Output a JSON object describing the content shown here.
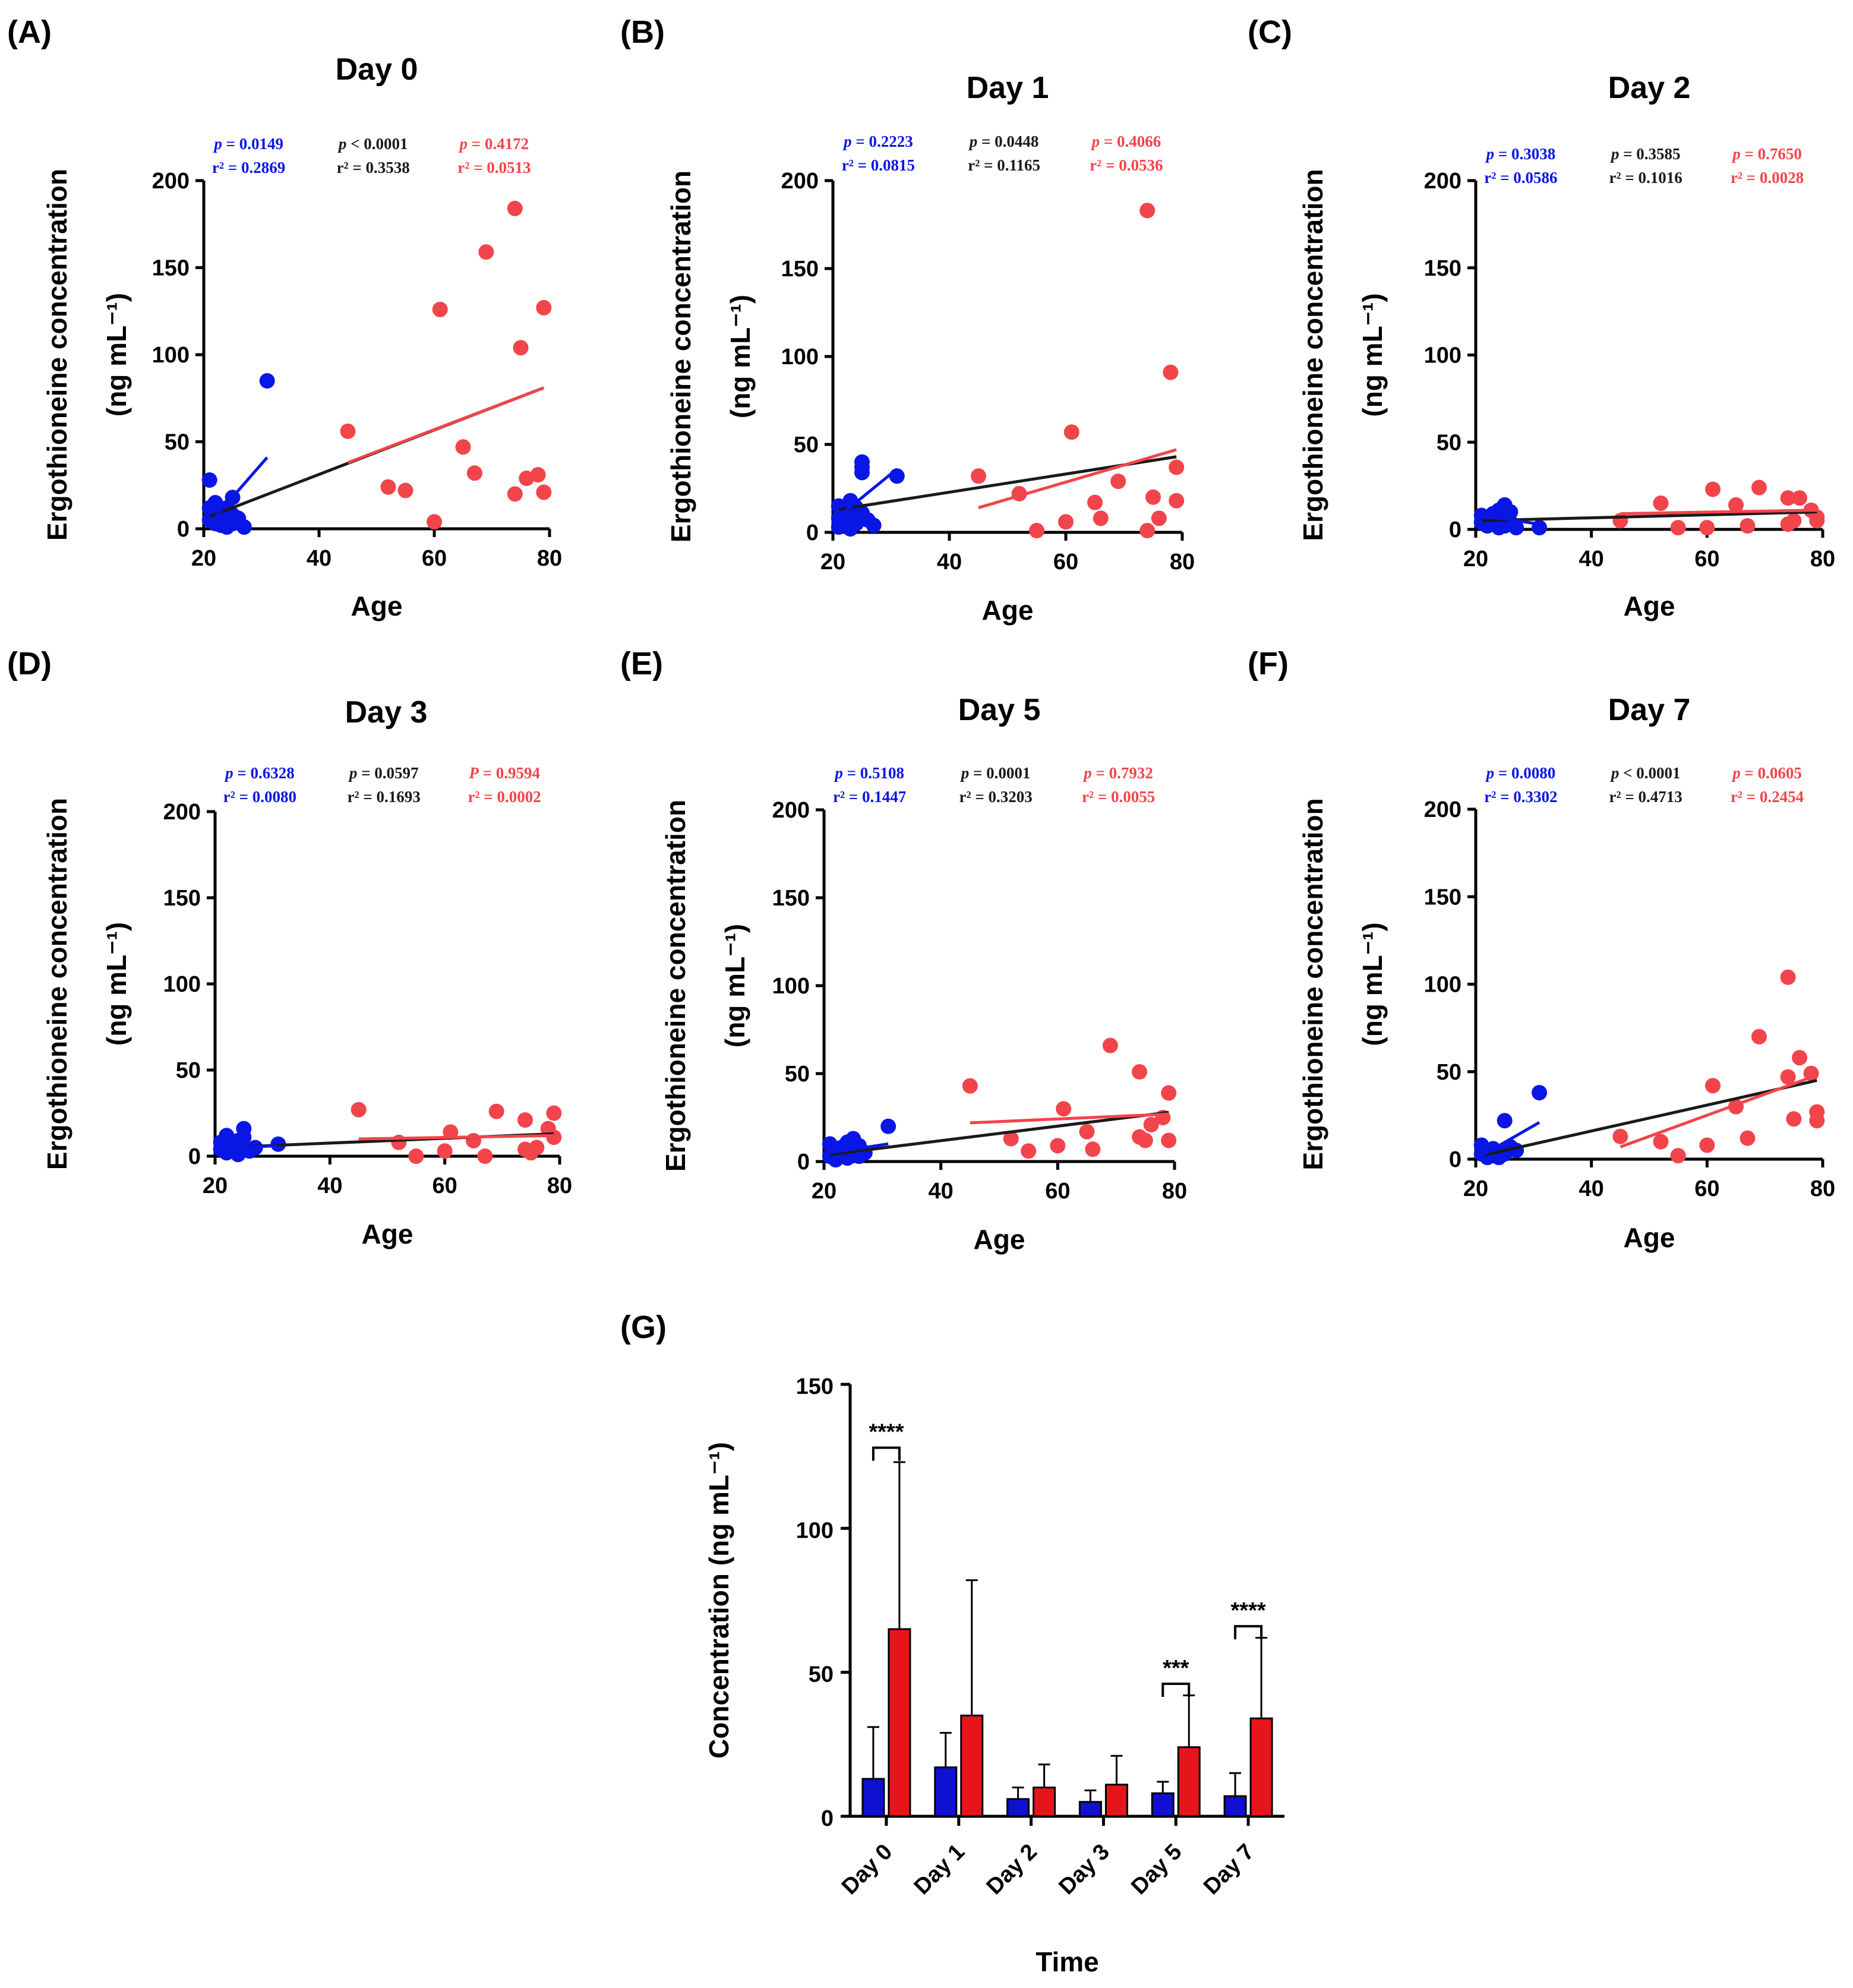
{
  "colors": {
    "young": "#0a16e6",
    "overall": "#1a1a1a",
    "old": "#f2444b",
    "bar_young": "#1010d0",
    "bar_old": "#e8141c"
  },
  "chart_data": [
    {
      "id": "A",
      "label": "(A)",
      "type": "scatter",
      "title": "Day 0",
      "xlabel": "Age",
      "ylabel": "Ergothioneine concentration",
      "ylabel2": "(ng mL⁻¹)",
      "xlim": [
        20,
        80
      ],
      "ylim": [
        0,
        200
      ],
      "xticks": [
        20,
        40,
        60,
        80
      ],
      "yticks": [
        0,
        50,
        100,
        150,
        200
      ],
      "stats": {
        "young": {
          "p_label": "p",
          "p": " = 0.0149",
          "r2": "r² = 0.2869"
        },
        "overall": {
          "p_label": "p",
          "p": " < 0.0001",
          "r2": "r² = 0.3538"
        },
        "old": {
          "p_label": "p",
          "p": " = 0.4172",
          "r2": "r² = 0.0513"
        }
      },
      "young_points": [
        [
          21,
          28
        ],
        [
          21,
          5
        ],
        [
          21,
          12
        ],
        [
          22,
          9
        ],
        [
          22,
          3
        ],
        [
          22,
          15
        ],
        [
          23,
          7
        ],
        [
          23,
          2
        ],
        [
          23,
          10
        ],
        [
          24,
          4
        ],
        [
          24,
          12
        ],
        [
          24,
          1
        ],
        [
          25,
          18
        ],
        [
          25,
          8
        ],
        [
          25,
          3
        ],
        [
          26,
          6
        ],
        [
          27,
          1
        ],
        [
          31,
          85
        ]
      ],
      "old_points": [
        [
          45,
          56
        ],
        [
          52,
          24
        ],
        [
          55,
          22
        ],
        [
          60,
          4
        ],
        [
          61,
          126
        ],
        [
          65,
          47
        ],
        [
          67,
          32
        ],
        [
          69,
          159
        ],
        [
          74,
          184
        ],
        [
          74,
          20
        ],
        [
          75,
          104
        ],
        [
          76,
          29
        ],
        [
          78,
          31
        ],
        [
          79,
          127
        ],
        [
          79,
          21
        ]
      ],
      "fits": {
        "young": [
          [
            21,
            3
          ],
          [
            31,
            41
          ]
        ],
        "overall": [
          [
            21,
            7
          ],
          [
            79,
            81
          ]
        ],
        "old": [
          [
            45,
            38
          ],
          [
            79,
            81
          ]
        ]
      }
    },
    {
      "id": "B",
      "label": "(B)",
      "type": "scatter",
      "title": "Day 1",
      "xlabel": "Age",
      "ylabel": "Ergothioneine concentration",
      "ylabel2": "(ng mL⁻¹)",
      "xlim": [
        20,
        80
      ],
      "ylim": [
        0,
        200
      ],
      "xticks": [
        20,
        40,
        60,
        80
      ],
      "yticks": [
        0,
        50,
        100,
        150,
        200
      ],
      "stats": {
        "young": {
          "p_label": "p",
          "p": " = 0.2223",
          "r2": "r² = 0.0815"
        },
        "overall": {
          "p_label": "p",
          "p": " = 0.0448",
          "r2": "r² = 0.1165"
        },
        "old": {
          "p_label": "p",
          "p": " = 0.4066",
          "r2": "r² = 0.0536"
        }
      },
      "young_points": [
        [
          21,
          15
        ],
        [
          21,
          8
        ],
        [
          21,
          3
        ],
        [
          22,
          12
        ],
        [
          22,
          6
        ],
        [
          23,
          18
        ],
        [
          23,
          2
        ],
        [
          23,
          9
        ],
        [
          24,
          14
        ],
        [
          24,
          5
        ],
        [
          25,
          40
        ],
        [
          25,
          37
        ],
        [
          25,
          34
        ],
        [
          25,
          11
        ],
        [
          26,
          7
        ],
        [
          27,
          4
        ],
        [
          31,
          32
        ]
      ],
      "old_points": [
        [
          45,
          32
        ],
        [
          52,
          22
        ],
        [
          55,
          1
        ],
        [
          60,
          6
        ],
        [
          61,
          57
        ],
        [
          65,
          17
        ],
        [
          66,
          8
        ],
        [
          69,
          29
        ],
        [
          74,
          183
        ],
        [
          74,
          1
        ],
        [
          75,
          20
        ],
        [
          76,
          8
        ],
        [
          78,
          91
        ],
        [
          79,
          37
        ],
        [
          79,
          18
        ]
      ],
      "fits": {
        "young": [
          [
            21,
            9
          ],
          [
            31,
            36
          ]
        ],
        "overall": [
          [
            21,
            13
          ],
          [
            79,
            43
          ]
        ],
        "old": [
          [
            45,
            14
          ],
          [
            79,
            47
          ]
        ]
      }
    },
    {
      "id": "C",
      "label": "(C)",
      "type": "scatter",
      "title": "Day 2",
      "xlabel": "Age",
      "ylabel": "Ergothioneine concentration",
      "ylabel2": "(ng mL⁻¹)",
      "xlim": [
        20,
        80
      ],
      "ylim": [
        0,
        200
      ],
      "xticks": [
        20,
        40,
        60,
        80
      ],
      "yticks": [
        0,
        50,
        100,
        150,
        200
      ],
      "stats": {
        "young": {
          "p_label": "p",
          "p": " = 0.3038",
          "r2": "r² = 0.0586"
        },
        "overall": {
          "p_label": "p",
          "p": " = 0.3585",
          "r2": "r² = 0.1016"
        },
        "old": {
          "p_label": "p",
          "p": " = 0.7650",
          "r2": "r² = 0.0028"
        }
      },
      "young_points": [
        [
          21,
          8
        ],
        [
          21,
          4
        ],
        [
          22,
          6
        ],
        [
          22,
          2
        ],
        [
          23,
          9
        ],
        [
          23,
          3
        ],
        [
          24,
          11
        ],
        [
          24,
          5
        ],
        [
          24,
          1
        ],
        [
          25,
          14
        ],
        [
          25,
          7
        ],
        [
          25,
          2
        ],
        [
          26,
          10
        ],
        [
          26,
          4
        ],
        [
          27,
          1
        ],
        [
          31,
          1
        ]
      ],
      "old_points": [
        [
          45,
          5
        ],
        [
          52,
          15
        ],
        [
          55,
          1
        ],
        [
          60,
          1
        ],
        [
          61,
          23
        ],
        [
          65,
          14
        ],
        [
          67,
          2
        ],
        [
          69,
          24
        ],
        [
          74,
          18
        ],
        [
          74,
          3
        ],
        [
          75,
          5
        ],
        [
          76,
          18
        ],
        [
          78,
          11
        ],
        [
          79,
          5
        ],
        [
          79,
          7
        ]
      ],
      "fits": {
        "young": [
          [
            21,
            8
          ],
          [
            31,
            3
          ]
        ],
        "overall": [
          [
            21,
            5
          ],
          [
            79,
            10
          ]
        ],
        "old": [
          [
            45,
            9
          ],
          [
            79,
            11
          ]
        ]
      }
    },
    {
      "id": "D",
      "label": "(D)",
      "type": "scatter",
      "title": "Day 3",
      "xlabel": "Age",
      "ylabel": "Ergothioneine concentration",
      "ylabel2": "(ng mL⁻¹)",
      "xlim": [
        20,
        80
      ],
      "ylim": [
        0,
        200
      ],
      "xticks": [
        20,
        40,
        60,
        80
      ],
      "yticks": [
        0,
        50,
        100,
        150,
        200
      ],
      "stats": {
        "young": {
          "p_label": "p",
          "p": " = 0.6328",
          "r2": "r² = 0.0080"
        },
        "overall": {
          "p_label": "p",
          "p": " = 0.0597",
          "r2": "r² = 0.1693"
        },
        "old": {
          "p_label": "P",
          "p": " = 0.9594",
          "r2": "r² = 0.0002"
        }
      },
      "young_points": [
        [
          21,
          4
        ],
        [
          21,
          8
        ],
        [
          22,
          2
        ],
        [
          22,
          12
        ],
        [
          23,
          6
        ],
        [
          23,
          3
        ],
        [
          24,
          9
        ],
        [
          24,
          1
        ],
        [
          25,
          16
        ],
        [
          25,
          5
        ],
        [
          25,
          11
        ],
        [
          26,
          3
        ],
        [
          27,
          5
        ],
        [
          31,
          7
        ]
      ],
      "old_points": [
        [
          45,
          27
        ],
        [
          52,
          8
        ],
        [
          55,
          0
        ],
        [
          60,
          3
        ],
        [
          61,
          14
        ],
        [
          65,
          9
        ],
        [
          67,
          0
        ],
        [
          69,
          26
        ],
        [
          74,
          21
        ],
        [
          74,
          4
        ],
        [
          75,
          2
        ],
        [
          76,
          5
        ],
        [
          78,
          16
        ],
        [
          79,
          25
        ],
        [
          79,
          11
        ]
      ],
      "fits": {
        "young": [
          [
            21,
            5
          ],
          [
            31,
            6
          ]
        ],
        "overall": [
          [
            21,
            5
          ],
          [
            79,
            13
          ]
        ],
        "old": [
          [
            45,
            10
          ],
          [
            79,
            12
          ]
        ]
      }
    },
    {
      "id": "E",
      "label": "(E)",
      "type": "scatter",
      "title": "Day 5",
      "xlabel": "Age",
      "ylabel": "Ergothioneine concentration",
      "ylabel2": "(ng mL⁻¹)",
      "xlim": [
        20,
        80
      ],
      "ylim": [
        0,
        200
      ],
      "xticks": [
        20,
        40,
        60,
        80
      ],
      "yticks": [
        0,
        50,
        100,
        150,
        200
      ],
      "stats": {
        "young": {
          "p_label": "p",
          "p": " = 0.5108",
          "r2": "r² = 0.1447"
        },
        "overall": {
          "p_label": "p",
          "p": " = 0.0001",
          "r2": "r² = 0.3203"
        },
        "old": {
          "p_label": "p",
          "p": " = 0.7932",
          "r2": "r² = 0.0055"
        }
      },
      "young_points": [
        [
          21,
          10
        ],
        [
          21,
          3
        ],
        [
          22,
          6
        ],
        [
          22,
          1
        ],
        [
          23,
          8
        ],
        [
          23,
          4
        ],
        [
          24,
          11
        ],
        [
          24,
          2
        ],
        [
          25,
          13
        ],
        [
          25,
          6
        ],
        [
          26,
          9
        ],
        [
          26,
          3
        ],
        [
          27,
          5
        ],
        [
          31,
          20
        ]
      ],
      "old_points": [
        [
          45,
          43
        ],
        [
          52,
          13
        ],
        [
          55,
          6
        ],
        [
          60,
          9
        ],
        [
          61,
          30
        ],
        [
          65,
          17
        ],
        [
          66,
          7
        ],
        [
          69,
          66
        ],
        [
          74,
          51
        ],
        [
          74,
          14
        ],
        [
          75,
          12
        ],
        [
          76,
          21
        ],
        [
          78,
          25
        ],
        [
          79,
          39
        ],
        [
          79,
          12
        ]
      ],
      "fits": {
        "young": [
          [
            21,
            5
          ],
          [
            31,
            10
          ]
        ],
        "overall": [
          [
            21,
            4
          ],
          [
            79,
            28
          ]
        ],
        "old": [
          [
            45,
            22
          ],
          [
            79,
            27
          ]
        ]
      }
    },
    {
      "id": "F",
      "label": "(F)",
      "type": "scatter",
      "title": "Day 7",
      "xlabel": "Age",
      "ylabel": "Ergothioneine concentration",
      "ylabel2": "(ng mL⁻¹)",
      "xlim": [
        20,
        80
      ],
      "ylim": [
        0,
        200
      ],
      "xticks": [
        20,
        40,
        60,
        80
      ],
      "yticks": [
        0,
        50,
        100,
        150,
        200
      ],
      "stats": {
        "young": {
          "p_label": "p",
          "p": " = 0.0080",
          "r2": "r² = 0.3302"
        },
        "overall": {
          "p_label": "p",
          "p": " < 0.0001",
          "r2": "r² = 0.4713"
        },
        "old": {
          "p_label": "p",
          "p": " = 0.0605",
          "r2": "r² = 0.2454"
        }
      },
      "young_points": [
        [
          21,
          8
        ],
        [
          21,
          3
        ],
        [
          22,
          5
        ],
        [
          22,
          1
        ],
        [
          23,
          6
        ],
        [
          23,
          2
        ],
        [
          24,
          4
        ],
        [
          24,
          1
        ],
        [
          25,
          22
        ],
        [
          25,
          3
        ],
        [
          26,
          7
        ],
        [
          27,
          5
        ],
        [
          31,
          38
        ]
      ],
      "old_points": [
        [
          45,
          13
        ],
        [
          52,
          10
        ],
        [
          55,
          2
        ],
        [
          60,
          8
        ],
        [
          61,
          42
        ],
        [
          65,
          30
        ],
        [
          67,
          12
        ],
        [
          69,
          70
        ],
        [
          74,
          104
        ],
        [
          74,
          47
        ],
        [
          75,
          23
        ],
        [
          76,
          58
        ],
        [
          78,
          49
        ],
        [
          79,
          27
        ],
        [
          79,
          22
        ]
      ],
      "fits": {
        "young": [
          [
            21,
            2
          ],
          [
            31,
            21
          ]
        ],
        "overall": [
          [
            21,
            2
          ],
          [
            79,
            45
          ]
        ],
        "old": [
          [
            45,
            7
          ],
          [
            79,
            48
          ]
        ]
      }
    },
    {
      "id": "G",
      "label": "(G)",
      "type": "bar",
      "xlabel": "Time",
      "ylabel": "Concentration (ng mL⁻¹)",
      "ylim": [
        0,
        150
      ],
      "yticks": [
        0,
        50,
        100,
        150
      ],
      "categories": [
        "Day 0",
        "Day 1",
        "Day 2",
        "Day 3",
        "Day 5",
        "Day 7"
      ],
      "series": [
        {
          "name": "young",
          "values": [
            13,
            17,
            6,
            5,
            8,
            7
          ],
          "errors": [
            18,
            12,
            4,
            4,
            4,
            8
          ]
        },
        {
          "name": "old",
          "values": [
            65,
            35,
            10,
            11,
            24,
            34
          ],
          "errors": [
            58,
            47,
            8,
            10,
            18,
            28
          ]
        }
      ],
      "significance": [
        {
          "category": "Day 0",
          "label": "****"
        },
        {
          "category": "Day 5",
          "label": "***"
        },
        {
          "category": "Day 7",
          "label": "****"
        }
      ]
    }
  ]
}
